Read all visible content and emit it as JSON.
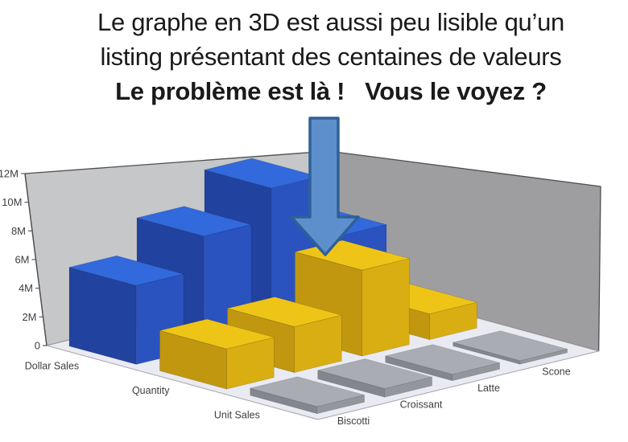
{
  "title": {
    "line1": "Le graphe en 3D est aussi peu lisible qu’un",
    "line2": "listing présentant des centaines de valeurs",
    "line3": "Le problème est là !   Vous le voyez ?"
  },
  "chart_data": {
    "type": "bar",
    "projection": "3d",
    "title": "",
    "categories": [
      "Biscotti",
      "Croissant",
      "Latte",
      "Scone"
    ],
    "series": [
      {
        "name": "Dollar Sales",
        "color_key": "blue",
        "values": [
          5.5,
          7.8,
          10.0,
          5.5
        ]
      },
      {
        "name": "Quantity",
        "color_key": "yellow",
        "values": [
          2.8,
          3.2,
          6.0,
          1.8
        ]
      },
      {
        "name": "Unit Sales",
        "color_key": "gray",
        "values": [
          0.5,
          0.6,
          0.45,
          0.25
        ]
      }
    ],
    "value_unit": "millions",
    "y_ticks": [
      "0",
      "2M",
      "4M",
      "6M",
      "8M",
      "10M",
      "12M"
    ],
    "ylim": [
      0,
      12
    ],
    "grid": false,
    "legend": "none",
    "walls": true,
    "note": "back row = Dollar Sales (blue), middle = Quantity (yellow), front = Unit Sales (gray); blue Scone bar hidden behind yellow Latte bar"
  },
  "annotation": {
    "arrow_direction": "down",
    "arrow_meaning": "points-at-hidden-bar"
  },
  "colors": {
    "blue": {
      "top": "#3269dc",
      "front": "#2a53c0",
      "side": "#21429f"
    },
    "yellow": {
      "top": "#eec517",
      "front": "#d9ae12",
      "side": "#c19710"
    },
    "gray": {
      "top": "#a9adb3",
      "front": "#93979d",
      "side": "#83878d"
    },
    "wall_left": "#c6c7c9",
    "wall_right": "#9e9ea1",
    "floor": "#eaeaf2",
    "outline": "#4e4e52",
    "floor_edge": "#a3a3ac",
    "label": "#3e3e42",
    "title_text": "#1a1a1a",
    "arrow_fill": "#5e8fcd",
    "arrow_stroke": "#2f6096"
  }
}
